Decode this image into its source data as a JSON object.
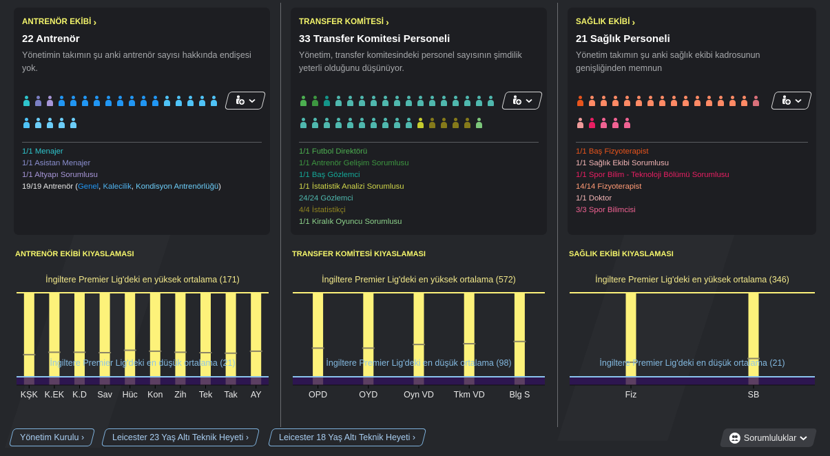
{
  "cards": [
    {
      "header": "ANTRENÖR EKİBİ",
      "title": "22 Antrenör",
      "description": "Yönetimin takımın şu anki antrenör sayısı hakkında endişesi yok.",
      "people_rows": [
        [
          "#2ec4cc",
          "#7b7fc4",
          "#a796d8",
          "#2196f3",
          "#2196f3",
          "#2196f3",
          "#2196f3",
          "#2196f3",
          "#2196f3",
          "#2196f3",
          "#2196f3",
          "#2196f3",
          "#4fc3f7",
          "#4fc3f7",
          "#4fc3f7",
          "#4fc3f7",
          "#4fc3f7"
        ],
        [
          "#4fc3f7",
          "#6ccdf8",
          "#6ccdf8",
          "#6ccdf8",
          "#6ccdf8"
        ]
      ],
      "roles": [
        {
          "text": "1/1 Menajer",
          "color": "#2ec4cc"
        },
        {
          "text": "1/1 Asistan Menajer",
          "color": "#8b8fd0"
        },
        {
          "text": "1/1 Altyapı Sorumlusu",
          "color": "#a796d8"
        },
        {
          "text": "19/19 Antrenör (",
          "color": "#e6e6e6",
          "parts": [
            {
              "text": "Genel",
              "color": "#2196f3"
            },
            {
              "text": ", ",
              "color": "#e6e6e6"
            },
            {
              "text": "Kalecilik",
              "color": "#4fb3f0"
            },
            {
              "text": ", ",
              "color": "#e6e6e6"
            },
            {
              "text": "Kondisyon Antrenörlüğü",
              "color": "#6ccdf8"
            },
            {
              "text": ")",
              "color": "#e6e6e6"
            }
          ]
        }
      ]
    },
    {
      "header": "TRANSFER KOMİTESİ",
      "title": "33 Transfer Komitesi Personeli",
      "description": "Yönetim, transfer komitesindeki personel sayısının şimdilik yeterli olduğunu düşünüyor.",
      "people_rows": [
        [
          "#4caf50",
          "#3d9640",
          "#14958a",
          "#4fb8ae",
          "#4fb8ae",
          "#4fb8ae",
          "#4fb8ae",
          "#4fb8ae",
          "#4fb8ae",
          "#4fb8ae",
          "#4fb8ae",
          "#4fb8ae",
          "#4fb8ae",
          "#4fb8ae",
          "#4fb8ae",
          "#4fb8ae",
          "#4fb8ae"
        ],
        [
          "#4fb8ae",
          "#4fb8ae",
          "#4fb8ae",
          "#4fb8ae",
          "#4fb8ae",
          "#4fb8ae",
          "#4fb8ae",
          "#4fb8ae",
          "#4fb8ae",
          "#4fb8ae",
          "#c6cc2e",
          "#857a1a",
          "#857a1a",
          "#857a1a",
          "#857a1a",
          "#7cc67a"
        ]
      ],
      "roles": [
        {
          "text": "1/1 Futbol Direktörü",
          "color": "#4caf50"
        },
        {
          "text": "1/1 Antrenör Gelişim Sorumlusu",
          "color": "#3d9640"
        },
        {
          "text": "1/1 Baş Gözlemci",
          "color": "#14a898"
        },
        {
          "text": "1/1 İstatistik Analizi Sorumlusu",
          "color": "#d0d64a"
        },
        {
          "text": "24/24 Gözlemci",
          "color": "#4fb8ae"
        },
        {
          "text": "4/4 İstatistikçi",
          "color": "#8f8420"
        },
        {
          "text": "1/1 Kiralık Oyuncu Sorumlusu",
          "color": "#8cd08a"
        }
      ]
    },
    {
      "header": "SAĞLIK EKİBİ",
      "title": "21 Sağlık Personeli",
      "description": "Yönetim takımın şu anki sağlık ekibi kadrosunun genişliğinden memnun",
      "people_rows": [
        [
          "#e8541c",
          "#ff8a65",
          "#ff8a65",
          "#ff8a65",
          "#ff8a65",
          "#ff8a65",
          "#ff8a65",
          "#ff8a65",
          "#ff8a65",
          "#ff8a65",
          "#ff8a65",
          "#ff8a65",
          "#ff8a65",
          "#ff8a65",
          "#ff8a65",
          "#d9707a"
        ],
        [
          "#ef9a9a",
          "#e91e63",
          "#f06292",
          "#f06292",
          "#f06292"
        ]
      ],
      "roles": [
        {
          "text": "1/1 Baş Fizyoterapist",
          "color": "#e8541c"
        },
        {
          "text": "1/1 Sağlık Ekibi Sorumlusu",
          "color": "#f1b4b4"
        },
        {
          "text": "1/1 Spor Bilim - Teknoloji Bölümü Sorumlusu",
          "color": "#e91e63"
        },
        {
          "text": "14/14 Fizyoterapist",
          "color": "#ff9a75"
        },
        {
          "text": "1/1 Doktor",
          "color": "#f1b4b4"
        },
        {
          "text": "3/3 Spor Bilimcisi",
          "color": "#f06292"
        }
      ]
    }
  ],
  "filter_button": {
    "icon": "person-add-icon",
    "chevron": "chevron-down-icon"
  },
  "chart_data": [
    {
      "type": "bar",
      "title": "ANTRENÖR EKİBİ KIYASLAMASI",
      "categories": [
        "KŞK",
        "K.EK",
        "K.D",
        "Sav",
        "Hüc",
        "Kon",
        "Zih",
        "Tek",
        "Tak",
        "AY"
      ],
      "values": [
        45,
        50,
        50,
        49,
        54,
        52,
        50,
        49,
        48,
        52
      ],
      "high_label": "İngiltere Premier Lig'deki en yüksek ortalama (171)",
      "high_value": 171,
      "low_label": "İngiltere Premier Lig'deki en düşük ortalama (21)",
      "low_value": 21,
      "ylim": [
        0,
        171
      ]
    },
    {
      "type": "bar",
      "title": "TRANSFER KOMİTESİ KIYASLAMASI",
      "categories": [
        "OPD",
        "OYD",
        "Oyn VD",
        "Tkm VD",
        "Blg S"
      ],
      "values": [
        195,
        195,
        220,
        225,
        240
      ],
      "high_label": "İngiltere Premier Lig'deki en yüksek ortalama (572)",
      "high_value": 572,
      "low_label": "İngiltere Premier Lig'deki en düşük ortalama (98)",
      "low_value": 98,
      "ylim": [
        0,
        572
      ]
    },
    {
      "type": "bar",
      "title": "SAĞLIK EKİBİ KIYASLAMASI",
      "categories": [
        "Fiz",
        "SB"
      ],
      "values": [
        60,
        75
      ],
      "high_label": "İngiltere Premier Lig'deki en yüksek ortalama (346)",
      "high_value": 346,
      "low_label": "İngiltere Premier Lig'deki en düşük ortalama (21)",
      "low_value": 21,
      "ylim": [
        0,
        346
      ]
    }
  ],
  "colors": {
    "accent_yellow": "#f4f56b",
    "bar_yellow": "#fdf27a",
    "low_line_blue": "#8ac4ee",
    "base_purple": "#2d1650"
  },
  "footer": {
    "links": [
      "Yönetim Kurulu",
      "Leicester 23 Yaş Altı Teknik Heyeti",
      "Leicester 18 Yaş Altı Teknik Heyeti"
    ],
    "responsibilities_label": "Sorumluluklar"
  }
}
